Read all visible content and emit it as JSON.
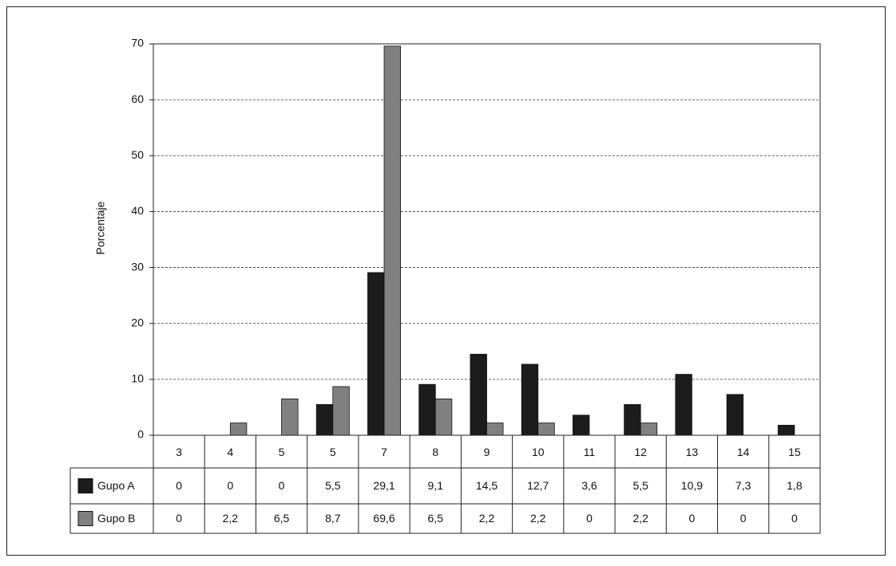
{
  "chart_data": {
    "type": "bar",
    "y_label": "Porcentaje",
    "categories": [
      "3",
      "4",
      "5",
      "5",
      "7",
      "8",
      "9",
      "10",
      "11",
      "12",
      "13",
      "14",
      "15"
    ],
    "series": [
      {
        "name": "Gupo A",
        "color": "#1c1c1c",
        "values": [
          0,
          0,
          0,
          5.5,
          29.1,
          9.1,
          14.5,
          12.7,
          3.6,
          5.5,
          10.9,
          7.3,
          1.8
        ],
        "value_labels": [
          "0",
          "0",
          "0",
          "5,5",
          "29,1",
          "9,1",
          "14,5",
          "12,7",
          "3,6",
          "5,5",
          "10,9",
          "7,3",
          "1,8"
        ]
      },
      {
        "name": "Gupo B",
        "color": "#808080",
        "values": [
          0,
          2.2,
          6.5,
          8.7,
          69.6,
          6.5,
          2.2,
          2.2,
          0,
          2.2,
          0,
          0,
          0
        ],
        "value_labels": [
          "0",
          "2,2",
          "6,5",
          "8,7",
          "69,6",
          "6,5",
          "2,2",
          "2,2",
          "0",
          "2,2",
          "0",
          "0",
          "0"
        ]
      }
    ],
    "ylim": [
      0,
      70
    ],
    "yticks": [
      0,
      10,
      20,
      30,
      40,
      50,
      60,
      70
    ],
    "grid": true
  }
}
